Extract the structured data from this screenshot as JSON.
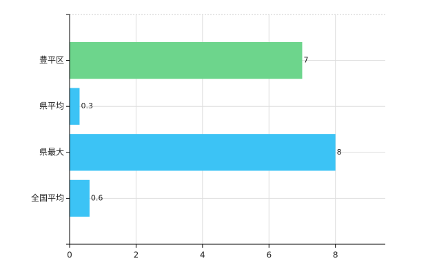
{
  "chart_data": {
    "type": "bar",
    "orientation": "horizontal",
    "categories": [
      "豊平区",
      "県平均",
      "県最大",
      "全国平均"
    ],
    "values": [
      7,
      0.3,
      8,
      0.6
    ],
    "colors": [
      "#6dd58c",
      "#3cc3f5",
      "#3cc3f5",
      "#3cc3f5"
    ],
    "xlim": [
      0,
      9.5
    ],
    "xticks": [
      0,
      2,
      4,
      6,
      8
    ],
    "grid": true
  }
}
